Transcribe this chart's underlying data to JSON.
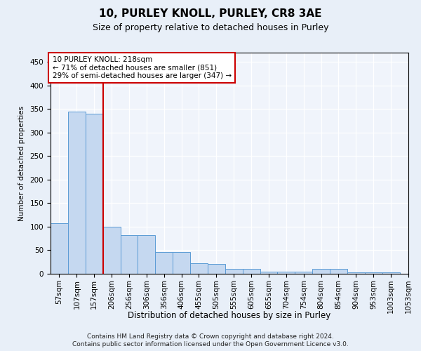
{
  "title1": "10, PURLEY KNOLL, PURLEY, CR8 3AE",
  "title2": "Size of property relative to detached houses in Purley",
  "xlabel": "Distribution of detached houses by size in Purley",
  "ylabel": "Number of detached properties",
  "bar_values": [
    107,
    345,
    340,
    100,
    82,
    82,
    47,
    47,
    22,
    21,
    10,
    10,
    5,
    5,
    5,
    10,
    10,
    3,
    3,
    3
  ],
  "bar_labels": [
    "57sqm",
    "107sqm",
    "157sqm",
    "206sqm",
    "256sqm",
    "306sqm",
    "356sqm",
    "406sqm",
    "455sqm",
    "505sqm",
    "555sqm",
    "605sqm",
    "655sqm",
    "704sqm",
    "754sqm",
    "804sqm",
    "854sqm",
    "904sqm",
    "953sqm",
    "1003sqm",
    "1053sqm"
  ],
  "bar_color": "#c5d8f0",
  "bar_edge_color": "#5b9bd5",
  "vline_index": 3,
  "vline_color": "#cc0000",
  "annotation_line1": "10 PURLEY KNOLL: 218sqm",
  "annotation_line2": "← 71% of detached houses are smaller (851)",
  "annotation_line3": "29% of semi-detached houses are larger (347) →",
  "annotation_box_color": "white",
  "annotation_box_edge_color": "#cc0000",
  "ylim": [
    0,
    470
  ],
  "yticks": [
    0,
    50,
    100,
    150,
    200,
    250,
    300,
    350,
    400,
    450
  ],
  "footer_line1": "Contains HM Land Registry data © Crown copyright and database right 2024.",
  "footer_line2": "Contains public sector information licensed under the Open Government Licence v3.0.",
  "bg_color": "#e8eff8",
  "plot_bg_color": "#f0f4fb"
}
